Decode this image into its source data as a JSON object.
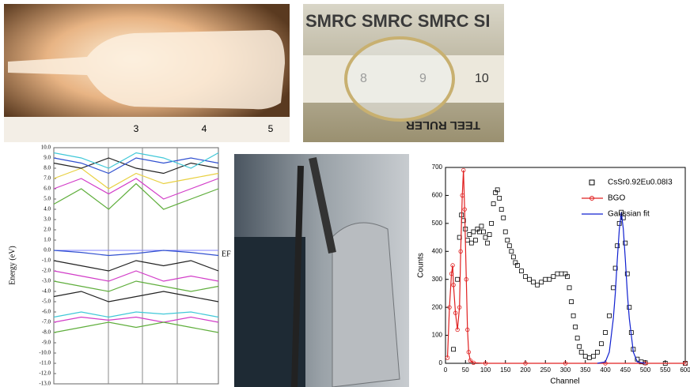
{
  "photos": [
    {
      "ruler_numbers": [
        "3",
        "4",
        "5"
      ]
    },
    {
      "banner": "SMRC SMRC SMRC SI",
      "ruler_numbers": [
        "8",
        "9",
        "10"
      ],
      "ruler_text": "TEEL RULER"
    },
    {}
  ],
  "chart_data": [
    {
      "type": "line",
      "ylabel": "Energy (eV)",
      "annotation": "EF",
      "x": [
        0,
        1,
        2,
        3,
        4,
        5,
        6
      ],
      "xlim": [
        0,
        6
      ],
      "ylim": [
        -13,
        10
      ],
      "yticks": [
        {
          "value": -13,
          "label": "-13.0"
        },
        {
          "value": -12,
          "label": "-12.0"
        },
        {
          "value": -11,
          "label": "-11.0"
        },
        {
          "value": -10,
          "label": "-10.0"
        },
        {
          "value": -9,
          "label": "-9.0"
        },
        {
          "value": -8,
          "label": "-8.0"
        },
        {
          "value": -7,
          "label": "-7.0"
        },
        {
          "value": -6,
          "label": "-6.0"
        },
        {
          "value": -5,
          "label": "-5.0"
        },
        {
          "value": -4,
          "label": "-4.0"
        },
        {
          "value": -3,
          "label": "-3.0"
        },
        {
          "value": -2,
          "label": "-2.0"
        },
        {
          "value": -1,
          "label": "-1.0"
        },
        {
          "value": 0,
          "label": "0.0"
        },
        {
          "value": 1,
          "label": "1.0"
        },
        {
          "value": 2,
          "label": "2.0"
        },
        {
          "value": 3,
          "label": "3.0"
        },
        {
          "value": 4,
          "label": "4.0"
        },
        {
          "value": 5,
          "label": "5.0"
        },
        {
          "value": 6,
          "label": "6.0"
        },
        {
          "value": 7,
          "label": "7.0"
        },
        {
          "value": 8,
          "label": "8.0"
        },
        {
          "value": 9,
          "label": "9.0"
        },
        {
          "value": 10,
          "label": "10.0"
        }
      ],
      "series": [
        {
          "color": "#5fae3c",
          "values": [
            4.5,
            6.0,
            4.0,
            6.5,
            4.0,
            5.0,
            6.0
          ]
        },
        {
          "color": "#d23cc8",
          "values": [
            6.0,
            7.0,
            5.5,
            7.0,
            5.0,
            6.0,
            7.0
          ]
        },
        {
          "color": "#e8d040",
          "values": [
            7.0,
            8.0,
            6.0,
            7.5,
            6.5,
            7.0,
            7.5
          ]
        },
        {
          "color": "#222222",
          "values": [
            8.5,
            8.0,
            9.0,
            8.0,
            7.5,
            8.5,
            8.0
          ]
        },
        {
          "color": "#3050d0",
          "values": [
            9.0,
            8.5,
            7.5,
            9.0,
            8.5,
            9.0,
            8.5
          ]
        },
        {
          "color": "#40c8d8",
          "values": [
            9.5,
            9.0,
            8.0,
            9.5,
            9.0,
            8.0,
            9.5
          ]
        },
        {
          "color": "#3050d0",
          "values": [
            0,
            -0.2,
            -0.5,
            -0.3,
            0,
            -0.2,
            -0.5
          ]
        },
        {
          "color": "#222222",
          "values": [
            -1.0,
            -1.5,
            -2.0,
            -1.0,
            -1.5,
            -1.0,
            -2.0
          ]
        },
        {
          "color": "#d23cc8",
          "values": [
            -2.0,
            -2.5,
            -3.0,
            -2.0,
            -3.0,
            -2.5,
            -3.0
          ]
        },
        {
          "color": "#5fae3c",
          "values": [
            -3.0,
            -3.5,
            -4.0,
            -3.0,
            -3.5,
            -4.0,
            -3.5
          ]
        },
        {
          "color": "#222222",
          "values": [
            -4.5,
            -4.0,
            -5.0,
            -4.5,
            -4.0,
            -4.5,
            -5.0
          ]
        },
        {
          "color": "#40c8d8",
          "values": [
            -6.5,
            -6.0,
            -6.5,
            -6.0,
            -6.2,
            -6.0,
            -6.5
          ]
        },
        {
          "color": "#d23cc8",
          "values": [
            -7.0,
            -6.5,
            -6.8,
            -6.5,
            -7.0,
            -6.5,
            -7.0
          ]
        },
        {
          "color": "#5fae3c",
          "values": [
            -8.0,
            -7.5,
            -7.0,
            -7.5,
            -7.0,
            -7.5,
            -8.0
          ]
        }
      ]
    },
    {
      "type": "scatter-line",
      "xlabel": "Channel",
      "ylabel": "Counts",
      "xlim": [
        0,
        600
      ],
      "xticks": [
        0,
        50,
        100,
        150,
        200,
        250,
        300,
        350,
        400,
        450,
        500,
        550,
        600
      ],
      "ylim": [
        0,
        700
      ],
      "yticks": [
        0,
        100,
        200,
        300,
        400,
        500,
        600,
        700
      ],
      "series": [
        {
          "name": "CsSr0.92Eu0.08I3",
          "color": "#000000",
          "marker": "square",
          "x": [
            20,
            30,
            35,
            40,
            45,
            50,
            55,
            60,
            65,
            70,
            75,
            80,
            85,
            90,
            95,
            100,
            105,
            110,
            115,
            120,
            125,
            130,
            135,
            140,
            145,
            150,
            155,
            160,
            165,
            170,
            175,
            180,
            190,
            200,
            210,
            220,
            230,
            240,
            250,
            260,
            270,
            280,
            290,
            300,
            305,
            310,
            315,
            320,
            325,
            330,
            335,
            340,
            350,
            360,
            370,
            380,
            390,
            400,
            410,
            420,
            425,
            430,
            435,
            440,
            445,
            450,
            455,
            460,
            465,
            470,
            480,
            490,
            500,
            550,
            600
          ],
          "values": [
            50,
            300,
            450,
            530,
            510,
            480,
            440,
            460,
            430,
            470,
            440,
            480,
            470,
            490,
            470,
            450,
            430,
            460,
            500,
            570,
            610,
            620,
            590,
            550,
            520,
            470,
            440,
            420,
            400,
            380,
            360,
            350,
            330,
            310,
            300,
            290,
            280,
            290,
            300,
            300,
            310,
            320,
            320,
            320,
            310,
            270,
            220,
            170,
            130,
            90,
            60,
            40,
            25,
            20,
            25,
            40,
            70,
            110,
            170,
            270,
            340,
            420,
            500,
            540,
            520,
            430,
            320,
            200,
            110,
            50,
            15,
            5,
            2,
            0,
            0
          ]
        },
        {
          "name": "BGO",
          "color": "#e02020",
          "marker": "circle",
          "x": [
            5,
            10,
            15,
            18,
            20,
            25,
            30,
            35,
            38,
            42,
            45,
            48,
            52,
            55,
            58,
            62,
            70,
            100,
            200,
            300,
            400,
            500,
            600
          ],
          "values": [
            20,
            200,
            320,
            350,
            280,
            180,
            120,
            200,
            400,
            600,
            690,
            550,
            300,
            120,
            40,
            10,
            2,
            0,
            0,
            0,
            0,
            0,
            0
          ]
        },
        {
          "name": "Gaussian fit",
          "color": "#1020d0",
          "marker": "none",
          "x": [
            380,
            400,
            410,
            420,
            425,
            430,
            435,
            440,
            445,
            450,
            455,
            460,
            470,
            480,
            500
          ],
          "values": [
            0,
            5,
            40,
            160,
            250,
            370,
            480,
            540,
            480,
            370,
            250,
            160,
            40,
            5,
            0
          ]
        }
      ]
    }
  ]
}
